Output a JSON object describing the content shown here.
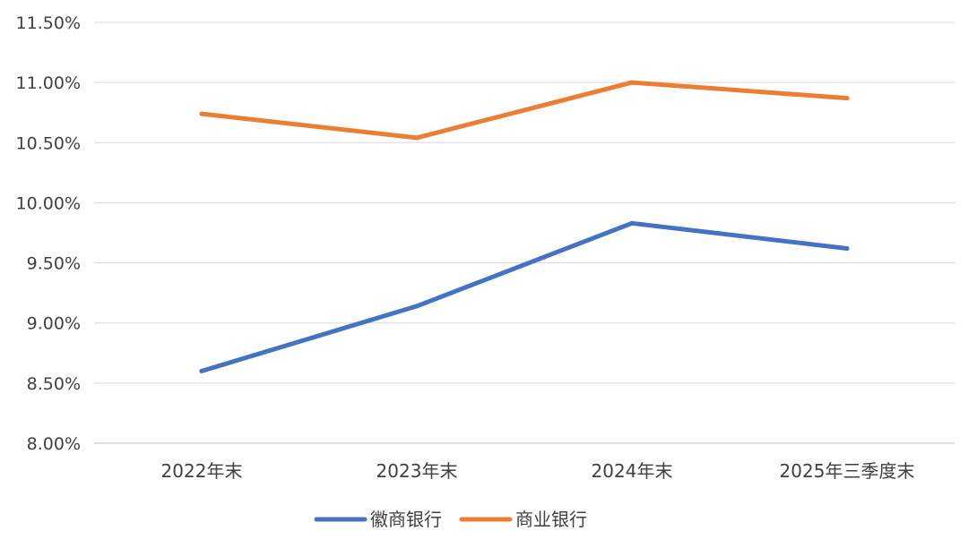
{
  "chart_data": {
    "type": "line",
    "title": "",
    "xlabel": "",
    "ylabel": "",
    "categories": [
      "2022年末",
      "2023年末",
      "2024年末",
      "2025年三季度末"
    ],
    "ylim": [
      8.0,
      11.5
    ],
    "y_ticks": [
      8.0,
      8.5,
      9.0,
      9.5,
      10.0,
      10.5,
      11.0,
      11.5
    ],
    "y_tick_labels": [
      "8.00%",
      "8.50%",
      "9.00%",
      "9.50%",
      "10.00%",
      "10.50%",
      "11.00%",
      "11.50%"
    ],
    "grid": true,
    "legend_position": "bottom",
    "series": [
      {
        "name": "徽商银行",
        "color": "#4472C4",
        "values": [
          8.6,
          9.14,
          9.83,
          9.62
        ]
      },
      {
        "name": "商业银行",
        "color": "#ED7D31",
        "values": [
          10.74,
          10.54,
          11.0,
          10.87
        ]
      }
    ]
  }
}
